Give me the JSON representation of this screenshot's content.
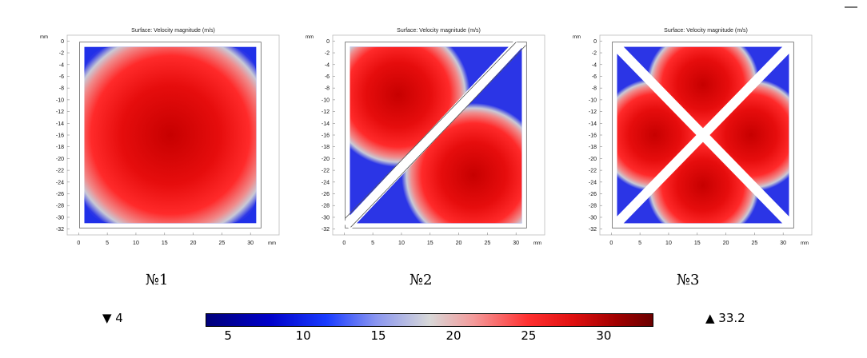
{
  "chart_data": [
    {
      "type": "heatmap",
      "title": "Surface: Velocity magnitude (m/s)",
      "caption": "№1",
      "x_unit": "mm",
      "y_unit": "mm",
      "x_ticks": [
        0,
        5,
        10,
        15,
        20,
        25,
        30
      ],
      "y_ticks": [
        0,
        -2,
        -4,
        -6,
        -8,
        -10,
        -12,
        -14,
        -16,
        -18,
        -20,
        -22,
        -24,
        -26,
        -28,
        -30,
        -32
      ],
      "xlim": [
        -2,
        35
      ],
      "ylim": [
        -33,
        1
      ],
      "domain_mm": {
        "x": [
          1,
          31
        ],
        "y": [
          -31,
          -1
        ]
      },
      "partition": "none"
    },
    {
      "type": "heatmap",
      "title": "Surface: Velocity magnitude (m/s)",
      "caption": "№2",
      "x_unit": "mm",
      "y_unit": "mm",
      "x_ticks": [
        0,
        5,
        10,
        15,
        20,
        25,
        30
      ],
      "y_ticks": [
        0,
        -2,
        -4,
        -6,
        -8,
        -10,
        -12,
        -14,
        -16,
        -18,
        -20,
        -22,
        -24,
        -26,
        -28,
        -30,
        -32
      ],
      "xlim": [
        -2,
        35
      ],
      "ylim": [
        -33,
        1
      ],
      "domain_mm": {
        "x": [
          1,
          31
        ],
        "y": [
          -31,
          -1
        ]
      },
      "partition": "one diagonal"
    },
    {
      "type": "heatmap",
      "title": "Surface: Velocity magnitude (m/s)",
      "caption": "№3",
      "x_unit": "mm",
      "y_unit": "mm",
      "x_ticks": [
        0,
        5,
        10,
        15,
        20,
        25,
        30
      ],
      "y_ticks": [
        0,
        -2,
        -4,
        -6,
        -8,
        -10,
        -12,
        -14,
        -16,
        -18,
        -20,
        -22,
        -24,
        -26,
        -28,
        -30,
        -32
      ],
      "xlim": [
        -2,
        35
      ],
      "ylim": [
        -33,
        1
      ],
      "domain_mm": {
        "x": [
          1,
          31
        ],
        "y": [
          -31,
          -1
        ]
      },
      "partition": "two diagonals"
    }
  ],
  "colorbar": {
    "ticks": [
      5,
      10,
      15,
      20,
      25,
      30
    ],
    "range": [
      3.5,
      33.2
    ],
    "min_label": "▼ 4",
    "max_label": "▲ 33.2",
    "colors": [
      "#00007a",
      "#1a3cff",
      "#d8d8d8",
      "#ff3030",
      "#6a0000"
    ]
  }
}
